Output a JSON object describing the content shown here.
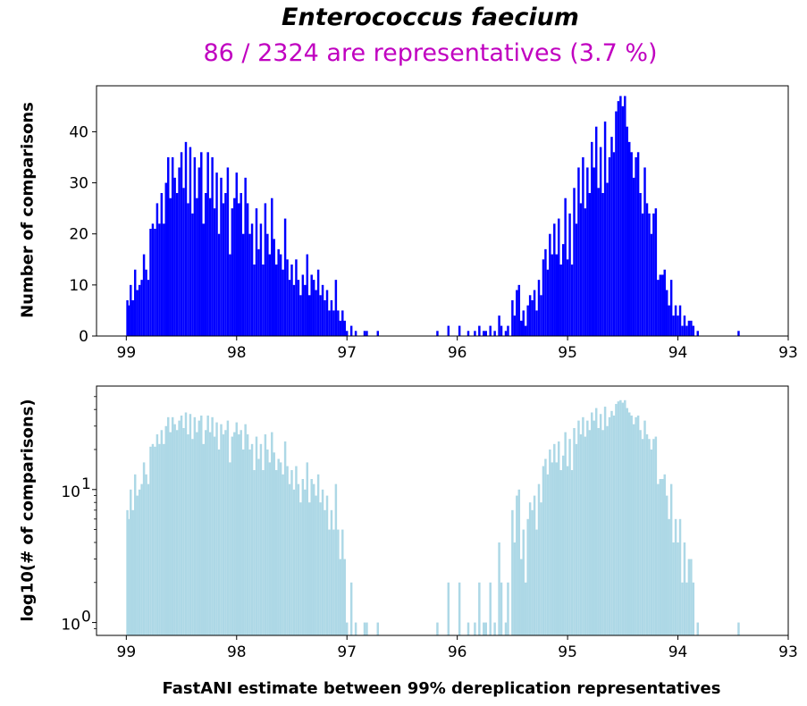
{
  "chart_data": [
    {
      "type": "histogram",
      "title": "Enterococcus faecium",
      "subtitle": "86 / 2324 are representatives (3.7 %)",
      "xlabel": "FastANI estimate between 99% dereplication representatives",
      "ylabel": "Number of comparisons",
      "bar_color": "#0000ff",
      "x_inverted": true,
      "xlim": [
        99.27,
        93.0
      ],
      "ylim": [
        0,
        49
      ],
      "xticks": [
        "99",
        "98",
        "97",
        "96",
        "95",
        "94",
        "93"
      ],
      "yticks": [
        "0",
        "10",
        "20",
        "30",
        "40"
      ],
      "series": [
        {
          "values": [
            {
              "x": 98.99,
              "y": 7
            },
            {
              "x": 98.98,
              "y": 6
            },
            {
              "x": 98.96,
              "y": 10
            },
            {
              "x": 98.94,
              "y": 7
            },
            {
              "x": 98.92,
              "y": 13
            },
            {
              "x": 98.9,
              "y": 9
            },
            {
              "x": 98.88,
              "y": 10
            },
            {
              "x": 98.86,
              "y": 11
            },
            {
              "x": 98.84,
              "y": 16
            },
            {
              "x": 98.82,
              "y": 13
            },
            {
              "x": 98.8,
              "y": 11
            },
            {
              "x": 98.78,
              "y": 21
            },
            {
              "x": 98.76,
              "y": 22
            },
            {
              "x": 98.74,
              "y": 21
            },
            {
              "x": 98.72,
              "y": 26
            },
            {
              "x": 98.7,
              "y": 22
            },
            {
              "x": 98.68,
              "y": 28
            },
            {
              "x": 98.66,
              "y": 22
            },
            {
              "x": 98.64,
              "y": 30
            },
            {
              "x": 98.62,
              "y": 35
            },
            {
              "x": 98.6,
              "y": 27
            },
            {
              "x": 98.58,
              "y": 35
            },
            {
              "x": 98.56,
              "y": 31
            },
            {
              "x": 98.54,
              "y": 28
            },
            {
              "x": 98.52,
              "y": 33
            },
            {
              "x": 98.5,
              "y": 36
            },
            {
              "x": 98.48,
              "y": 29
            },
            {
              "x": 98.46,
              "y": 38
            },
            {
              "x": 98.44,
              "y": 26
            },
            {
              "x": 98.42,
              "y": 37
            },
            {
              "x": 98.4,
              "y": 24
            },
            {
              "x": 98.38,
              "y": 35
            },
            {
              "x": 98.36,
              "y": 27
            },
            {
              "x": 98.34,
              "y": 33
            },
            {
              "x": 98.32,
              "y": 36
            },
            {
              "x": 98.3,
              "y": 22
            },
            {
              "x": 98.28,
              "y": 28
            },
            {
              "x": 98.26,
              "y": 36
            },
            {
              "x": 98.24,
              "y": 27
            },
            {
              "x": 98.22,
              "y": 35
            },
            {
              "x": 98.2,
              "y": 25
            },
            {
              "x": 98.18,
              "y": 32
            },
            {
              "x": 98.16,
              "y": 20
            },
            {
              "x": 98.14,
              "y": 31
            },
            {
              "x": 98.12,
              "y": 26
            },
            {
              "x": 98.1,
              "y": 28
            },
            {
              "x": 98.08,
              "y": 33
            },
            {
              "x": 98.06,
              "y": 16
            },
            {
              "x": 98.04,
              "y": 25
            },
            {
              "x": 98.02,
              "y": 27
            },
            {
              "x": 98.0,
              "y": 32
            },
            {
              "x": 97.98,
              "y": 26
            },
            {
              "x": 97.96,
              "y": 28
            },
            {
              "x": 97.94,
              "y": 20
            },
            {
              "x": 97.92,
              "y": 31
            },
            {
              "x": 97.9,
              "y": 26
            },
            {
              "x": 97.88,
              "y": 20
            },
            {
              "x": 97.86,
              "y": 22
            },
            {
              "x": 97.84,
              "y": 14
            },
            {
              "x": 97.82,
              "y": 25
            },
            {
              "x": 97.8,
              "y": 17
            },
            {
              "x": 97.78,
              "y": 22
            },
            {
              "x": 97.76,
              "y": 14
            },
            {
              "x": 97.74,
              "y": 26
            },
            {
              "x": 97.72,
              "y": 20
            },
            {
              "x": 97.7,
              "y": 16
            },
            {
              "x": 97.68,
              "y": 27
            },
            {
              "x": 97.66,
              "y": 19
            },
            {
              "x": 97.64,
              "y": 14
            },
            {
              "x": 97.62,
              "y": 17
            },
            {
              "x": 97.6,
              "y": 16
            },
            {
              "x": 97.58,
              "y": 13
            },
            {
              "x": 97.56,
              "y": 23
            },
            {
              "x": 97.54,
              "y": 15
            },
            {
              "x": 97.52,
              "y": 11
            },
            {
              "x": 97.5,
              "y": 14
            },
            {
              "x": 97.48,
              "y": 10
            },
            {
              "x": 97.46,
              "y": 15
            },
            {
              "x": 97.44,
              "y": 11
            },
            {
              "x": 97.42,
              "y": 8
            },
            {
              "x": 97.4,
              "y": 12
            },
            {
              "x": 97.38,
              "y": 10
            },
            {
              "x": 97.36,
              "y": 16
            },
            {
              "x": 97.34,
              "y": 8
            },
            {
              "x": 97.32,
              "y": 12
            },
            {
              "x": 97.3,
              "y": 11
            },
            {
              "x": 97.28,
              "y": 9
            },
            {
              "x": 97.26,
              "y": 13
            },
            {
              "x": 97.24,
              "y": 8
            },
            {
              "x": 97.22,
              "y": 10
            },
            {
              "x": 97.2,
              "y": 7
            },
            {
              "x": 97.18,
              "y": 9
            },
            {
              "x": 97.16,
              "y": 5
            },
            {
              "x": 97.14,
              "y": 7
            },
            {
              "x": 97.12,
              "y": 5
            },
            {
              "x": 97.1,
              "y": 11
            },
            {
              "x": 97.08,
              "y": 5
            },
            {
              "x": 97.06,
              "y": 3
            },
            {
              "x": 97.04,
              "y": 5
            },
            {
              "x": 97.02,
              "y": 3
            },
            {
              "x": 97.0,
              "y": 1
            },
            {
              "x": 96.96,
              "y": 2
            },
            {
              "x": 96.92,
              "y": 1
            },
            {
              "x": 96.84,
              "y": 1
            },
            {
              "x": 96.82,
              "y": 1
            },
            {
              "x": 96.72,
              "y": 1
            },
            {
              "x": 96.18,
              "y": 1
            },
            {
              "x": 96.08,
              "y": 2
            },
            {
              "x": 95.98,
              "y": 2
            },
            {
              "x": 95.9,
              "y": 1
            },
            {
              "x": 95.84,
              "y": 1
            },
            {
              "x": 95.8,
              "y": 2
            },
            {
              "x": 95.76,
              "y": 1
            },
            {
              "x": 95.74,
              "y": 1
            },
            {
              "x": 95.7,
              "y": 2
            },
            {
              "x": 95.66,
              "y": 1
            },
            {
              "x": 95.62,
              "y": 4
            },
            {
              "x": 95.6,
              "y": 2
            },
            {
              "x": 95.56,
              "y": 1
            },
            {
              "x": 95.54,
              "y": 2
            },
            {
              "x": 95.5,
              "y": 7
            },
            {
              "x": 95.48,
              "y": 4
            },
            {
              "x": 95.46,
              "y": 9
            },
            {
              "x": 95.44,
              "y": 10
            },
            {
              "x": 95.42,
              "y": 3
            },
            {
              "x": 95.4,
              "y": 5
            },
            {
              "x": 95.38,
              "y": 2
            },
            {
              "x": 95.36,
              "y": 6
            },
            {
              "x": 95.34,
              "y": 8
            },
            {
              "x": 95.32,
              "y": 7
            },
            {
              "x": 95.3,
              "y": 9
            },
            {
              "x": 95.28,
              "y": 5
            },
            {
              "x": 95.26,
              "y": 11
            },
            {
              "x": 95.24,
              "y": 8
            },
            {
              "x": 95.22,
              "y": 15
            },
            {
              "x": 95.2,
              "y": 17
            },
            {
              "x": 95.18,
              "y": 13
            },
            {
              "x": 95.16,
              "y": 20
            },
            {
              "x": 95.14,
              "y": 16
            },
            {
              "x": 95.12,
              "y": 22
            },
            {
              "x": 95.1,
              "y": 16
            },
            {
              "x": 95.08,
              "y": 23
            },
            {
              "x": 95.06,
              "y": 14
            },
            {
              "x": 95.04,
              "y": 18
            },
            {
              "x": 95.02,
              "y": 27
            },
            {
              "x": 95.0,
              "y": 15
            },
            {
              "x": 94.98,
              "y": 24
            },
            {
              "x": 94.96,
              "y": 14
            },
            {
              "x": 94.94,
              "y": 29
            },
            {
              "x": 94.92,
              "y": 22
            },
            {
              "x": 94.9,
              "y": 33
            },
            {
              "x": 94.88,
              "y": 26
            },
            {
              "x": 94.86,
              "y": 35
            },
            {
              "x": 94.84,
              "y": 25
            },
            {
              "x": 94.82,
              "y": 33
            },
            {
              "x": 94.8,
              "y": 28
            },
            {
              "x": 94.78,
              "y": 38
            },
            {
              "x": 94.76,
              "y": 33
            },
            {
              "x": 94.74,
              "y": 41
            },
            {
              "x": 94.72,
              "y": 29
            },
            {
              "x": 94.7,
              "y": 37
            },
            {
              "x": 94.68,
              "y": 28
            },
            {
              "x": 94.66,
              "y": 42
            },
            {
              "x": 94.64,
              "y": 30
            },
            {
              "x": 94.62,
              "y": 35
            },
            {
              "x": 94.6,
              "y": 39
            },
            {
              "x": 94.58,
              "y": 36
            },
            {
              "x": 94.56,
              "y": 44
            },
            {
              "x": 94.54,
              "y": 46
            },
            {
              "x": 94.52,
              "y": 47
            },
            {
              "x": 94.5,
              "y": 45
            },
            {
              "x": 94.48,
              "y": 47
            },
            {
              "x": 94.46,
              "y": 41
            },
            {
              "x": 94.44,
              "y": 38
            },
            {
              "x": 94.42,
              "y": 36
            },
            {
              "x": 94.4,
              "y": 31
            },
            {
              "x": 94.38,
              "y": 35
            },
            {
              "x": 94.36,
              "y": 36
            },
            {
              "x": 94.34,
              "y": 28
            },
            {
              "x": 94.32,
              "y": 24
            },
            {
              "x": 94.3,
              "y": 33
            },
            {
              "x": 94.28,
              "y": 26
            },
            {
              "x": 94.26,
              "y": 24
            },
            {
              "x": 94.24,
              "y": 20
            },
            {
              "x": 94.22,
              "y": 24
            },
            {
              "x": 94.2,
              "y": 25
            },
            {
              "x": 94.18,
              "y": 11
            },
            {
              "x": 94.16,
              "y": 12
            },
            {
              "x": 94.14,
              "y": 12
            },
            {
              "x": 94.12,
              "y": 13
            },
            {
              "x": 94.1,
              "y": 9
            },
            {
              "x": 94.08,
              "y": 6
            },
            {
              "x": 94.06,
              "y": 11
            },
            {
              "x": 94.04,
              "y": 4
            },
            {
              "x": 94.02,
              "y": 6
            },
            {
              "x": 94.0,
              "y": 4
            },
            {
              "x": 93.98,
              "y": 6
            },
            {
              "x": 93.96,
              "y": 2
            },
            {
              "x": 93.94,
              "y": 4
            },
            {
              "x": 93.92,
              "y": 2
            },
            {
              "x": 93.9,
              "y": 3
            },
            {
              "x": 93.88,
              "y": 3
            },
            {
              "x": 93.86,
              "y": 2
            },
            {
              "x": 93.82,
              "y": 1
            },
            {
              "x": 93.45,
              "y": 1
            }
          ]
        }
      ]
    },
    {
      "type": "histogram",
      "ylabel": "log10(# of comparisons)",
      "bar_color": "#add8e6",
      "y_scale": "log",
      "x_inverted": true,
      "xlim": [
        99.27,
        93.0
      ],
      "ylim": [
        0.8,
        60
      ],
      "xticks": [
        "99",
        "98",
        "97",
        "96",
        "95",
        "94",
        "93"
      ],
      "yticks": [
        {
          "value": 1,
          "base": "10",
          "exp": "0"
        },
        {
          "value": 10,
          "base": "10",
          "exp": "1"
        }
      ],
      "same_values_as_top": true
    }
  ]
}
